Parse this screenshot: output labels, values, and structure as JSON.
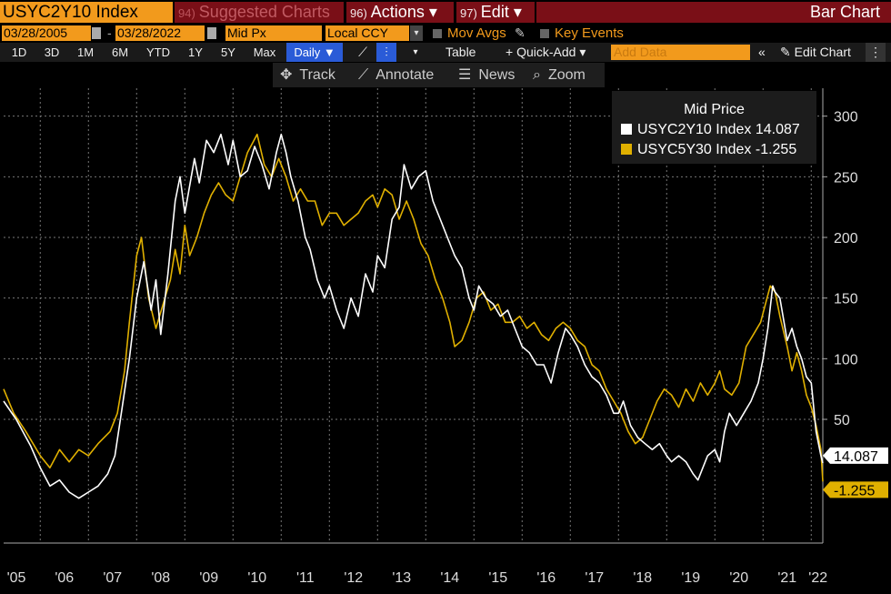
{
  "toolbar": {
    "ticker": "USYC2Y10 Index",
    "suggested": {
      "num": "94)",
      "label": "Suggested Charts"
    },
    "actions": {
      "num": "96)",
      "label": "Actions ▾"
    },
    "edit": {
      "num": "97)",
      "label": "Edit ▾"
    },
    "title": "Bar Chart"
  },
  "params": {
    "start_date": "03/28/2005",
    "end_date": "03/28/2022",
    "price_field": "Mid Px",
    "currency": "Local CCY",
    "mov_avgs": "Mov Avgs",
    "key_events": "Key Events",
    "add_data_placeholder": "Add Data"
  },
  "ranges": [
    "1D",
    "3D",
    "1M",
    "6M",
    "YTD",
    "1Y",
    "5Y",
    "Max"
  ],
  "frequency": "Daily ▼",
  "chart_tools": {
    "table": "Table",
    "quick_add": "+ Quick-Add ▾",
    "edit_chart": "✎ Edit Chart",
    "collapse": "«"
  },
  "actions_bar": {
    "track": "Track",
    "annotate": "Annotate",
    "news": "News",
    "zoom": "Zoom"
  },
  "colors": {
    "white_series": "#ffffff",
    "gold_series": "#e0b000",
    "orange": "#f29a1c"
  },
  "chart_data": {
    "type": "line",
    "title": "Mid Price",
    "y_ticks": [
      50,
      100,
      150,
      200,
      250,
      300
    ],
    "ylim": [
      -52,
      323
    ],
    "x_tick_labels": [
      "'05",
      "'06",
      "'07",
      "'08",
      "'09",
      "'10",
      "'11",
      "'12",
      "'13",
      "'14",
      "'15",
      "'16",
      "'17",
      "'18",
      "'19",
      "'20",
      "'21",
      "'22"
    ],
    "xlim": [
      2005.24,
      2022.24
    ],
    "series": [
      {
        "name": "USYC2Y10 Index",
        "last_value": "14.087",
        "points": [
          [
            2005.24,
            65
          ],
          [
            2005.5,
            50
          ],
          [
            2005.8,
            28
          ],
          [
            2006.0,
            10
          ],
          [
            2006.2,
            -5
          ],
          [
            2006.4,
            0
          ],
          [
            2006.6,
            -10
          ],
          [
            2006.8,
            -15
          ],
          [
            2007.0,
            -10
          ],
          [
            2007.2,
            -5
          ],
          [
            2007.4,
            5
          ],
          [
            2007.55,
            20
          ],
          [
            2007.7,
            60
          ],
          [
            2007.85,
            100
          ],
          [
            2008.0,
            150
          ],
          [
            2008.15,
            180
          ],
          [
            2008.3,
            140
          ],
          [
            2008.4,
            165
          ],
          [
            2008.5,
            120
          ],
          [
            2008.65,
            170
          ],
          [
            2008.8,
            230
          ],
          [
            2008.9,
            250
          ],
          [
            2009.0,
            220
          ],
          [
            2009.2,
            265
          ],
          [
            2009.3,
            245
          ],
          [
            2009.45,
            280
          ],
          [
            2009.6,
            270
          ],
          [
            2009.75,
            285
          ],
          [
            2009.9,
            260
          ],
          [
            2010.0,
            280
          ],
          [
            2010.15,
            250
          ],
          [
            2010.3,
            255
          ],
          [
            2010.45,
            275
          ],
          [
            2010.6,
            260
          ],
          [
            2010.75,
            240
          ],
          [
            2010.9,
            270
          ],
          [
            2011.0,
            285
          ],
          [
            2011.1,
            270
          ],
          [
            2011.2,
            250
          ],
          [
            2011.35,
            230
          ],
          [
            2011.5,
            200
          ],
          [
            2011.6,
            190
          ],
          [
            2011.75,
            165
          ],
          [
            2011.9,
            150
          ],
          [
            2012.0,
            160
          ],
          [
            2012.15,
            140
          ],
          [
            2012.3,
            125
          ],
          [
            2012.45,
            150
          ],
          [
            2012.6,
            135
          ],
          [
            2012.75,
            170
          ],
          [
            2012.9,
            155
          ],
          [
            2013.0,
            185
          ],
          [
            2013.15,
            175
          ],
          [
            2013.3,
            215
          ],
          [
            2013.45,
            225
          ],
          [
            2013.55,
            260
          ],
          [
            2013.7,
            240
          ],
          [
            2013.85,
            250
          ],
          [
            2014.0,
            255
          ],
          [
            2014.15,
            230
          ],
          [
            2014.3,
            215
          ],
          [
            2014.45,
            200
          ],
          [
            2014.6,
            185
          ],
          [
            2014.75,
            175
          ],
          [
            2014.9,
            150
          ],
          [
            2015.0,
            140
          ],
          [
            2015.1,
            160
          ],
          [
            2015.25,
            150
          ],
          [
            2015.4,
            145
          ],
          [
            2015.55,
            135
          ],
          [
            2015.7,
            140
          ],
          [
            2015.85,
            125
          ],
          [
            2016.0,
            110
          ],
          [
            2016.15,
            105
          ],
          [
            2016.3,
            95
          ],
          [
            2016.45,
            95
          ],
          [
            2016.6,
            80
          ],
          [
            2016.75,
            105
          ],
          [
            2016.9,
            125
          ],
          [
            2017.0,
            120
          ],
          [
            2017.15,
            110
          ],
          [
            2017.3,
            95
          ],
          [
            2017.45,
            85
          ],
          [
            2017.6,
            80
          ],
          [
            2017.75,
            70
          ],
          [
            2017.9,
            55
          ],
          [
            2018.0,
            55
          ],
          [
            2018.1,
            65
          ],
          [
            2018.25,
            45
          ],
          [
            2018.4,
            35
          ],
          [
            2018.55,
            30
          ],
          [
            2018.7,
            25
          ],
          [
            2018.85,
            30
          ],
          [
            2019.0,
            20
          ],
          [
            2019.1,
            15
          ],
          [
            2019.25,
            20
          ],
          [
            2019.4,
            15
          ],
          [
            2019.55,
            5
          ],
          [
            2019.65,
            0
          ],
          [
            2019.75,
            10
          ],
          [
            2019.85,
            20
          ],
          [
            2020.0,
            25
          ],
          [
            2020.1,
            15
          ],
          [
            2020.2,
            40
          ],
          [
            2020.3,
            55
          ],
          [
            2020.45,
            45
          ],
          [
            2020.6,
            55
          ],
          [
            2020.75,
            65
          ],
          [
            2020.9,
            80
          ],
          [
            2021.0,
            100
          ],
          [
            2021.1,
            125
          ],
          [
            2021.2,
            160
          ],
          [
            2021.25,
            155
          ],
          [
            2021.35,
            150
          ],
          [
            2021.5,
            115
          ],
          [
            2021.6,
            125
          ],
          [
            2021.7,
            110
          ],
          [
            2021.8,
            100
          ],
          [
            2021.9,
            85
          ],
          [
            2022.0,
            80
          ],
          [
            2022.1,
            40
          ],
          [
            2022.2,
            20
          ],
          [
            2022.24,
            14.087
          ]
        ]
      },
      {
        "name": "USYC5Y30 Index",
        "last_value": "-1.255",
        "points": [
          [
            2005.24,
            75
          ],
          [
            2005.45,
            55
          ],
          [
            2005.7,
            40
          ],
          [
            2006.0,
            20
          ],
          [
            2006.2,
            10
          ],
          [
            2006.4,
            25
          ],
          [
            2006.6,
            15
          ],
          [
            2006.8,
            25
          ],
          [
            2007.0,
            20
          ],
          [
            2007.2,
            30
          ],
          [
            2007.45,
            40
          ],
          [
            2007.6,
            55
          ],
          [
            2007.75,
            90
          ],
          [
            2007.85,
            130
          ],
          [
            2008.0,
            185
          ],
          [
            2008.1,
            200
          ],
          [
            2008.25,
            150
          ],
          [
            2008.4,
            125
          ],
          [
            2008.55,
            145
          ],
          [
            2008.7,
            165
          ],
          [
            2008.8,
            190
          ],
          [
            2008.9,
            170
          ],
          [
            2009.0,
            210
          ],
          [
            2009.1,
            185
          ],
          [
            2009.25,
            200
          ],
          [
            2009.4,
            220
          ],
          [
            2009.55,
            235
          ],
          [
            2009.7,
            245
          ],
          [
            2009.85,
            235
          ],
          [
            2010.0,
            230
          ],
          [
            2010.15,
            250
          ],
          [
            2010.3,
            270
          ],
          [
            2010.5,
            285
          ],
          [
            2010.65,
            260
          ],
          [
            2010.8,
            250
          ],
          [
            2010.95,
            265
          ],
          [
            2011.1,
            250
          ],
          [
            2011.25,
            230
          ],
          [
            2011.4,
            240
          ],
          [
            2011.55,
            230
          ],
          [
            2011.7,
            230
          ],
          [
            2011.85,
            210
          ],
          [
            2012.0,
            220
          ],
          [
            2012.15,
            220
          ],
          [
            2012.3,
            210
          ],
          [
            2012.45,
            215
          ],
          [
            2012.6,
            220
          ],
          [
            2012.75,
            230
          ],
          [
            2012.9,
            235
          ],
          [
            2013.0,
            225
          ],
          [
            2013.15,
            240
          ],
          [
            2013.3,
            235
          ],
          [
            2013.45,
            215
          ],
          [
            2013.6,
            230
          ],
          [
            2013.75,
            215
          ],
          [
            2013.9,
            195
          ],
          [
            2014.05,
            185
          ],
          [
            2014.2,
            165
          ],
          [
            2014.35,
            150
          ],
          [
            2014.5,
            130
          ],
          [
            2014.6,
            110
          ],
          [
            2014.75,
            115
          ],
          [
            2014.9,
            130
          ],
          [
            2015.05,
            150
          ],
          [
            2015.2,
            155
          ],
          [
            2015.35,
            140
          ],
          [
            2015.5,
            145
          ],
          [
            2015.65,
            130
          ],
          [
            2015.8,
            130
          ],
          [
            2015.95,
            135
          ],
          [
            2016.1,
            125
          ],
          [
            2016.25,
            130
          ],
          [
            2016.4,
            120
          ],
          [
            2016.55,
            115
          ],
          [
            2016.7,
            125
          ],
          [
            2016.85,
            130
          ],
          [
            2017.0,
            125
          ],
          [
            2017.15,
            115
          ],
          [
            2017.3,
            110
          ],
          [
            2017.45,
            95
          ],
          [
            2017.6,
            90
          ],
          [
            2017.75,
            75
          ],
          [
            2017.9,
            65
          ],
          [
            2018.05,
            55
          ],
          [
            2018.2,
            40
          ],
          [
            2018.35,
            30
          ],
          [
            2018.5,
            35
          ],
          [
            2018.65,
            50
          ],
          [
            2018.8,
            65
          ],
          [
            2018.95,
            75
          ],
          [
            2019.1,
            70
          ],
          [
            2019.25,
            60
          ],
          [
            2019.4,
            75
          ],
          [
            2019.55,
            65
          ],
          [
            2019.7,
            80
          ],
          [
            2019.85,
            70
          ],
          [
            2020.0,
            80
          ],
          [
            2020.1,
            90
          ],
          [
            2020.2,
            75
          ],
          [
            2020.35,
            70
          ],
          [
            2020.5,
            80
          ],
          [
            2020.65,
            110
          ],
          [
            2020.8,
            120
          ],
          [
            2020.95,
            130
          ],
          [
            2021.05,
            145
          ],
          [
            2021.15,
            160
          ],
          [
            2021.25,
            155
          ],
          [
            2021.35,
            135
          ],
          [
            2021.5,
            110
          ],
          [
            2021.6,
            90
          ],
          [
            2021.7,
            105
          ],
          [
            2021.8,
            90
          ],
          [
            2021.9,
            70
          ],
          [
            2022.0,
            60
          ],
          [
            2022.1,
            45
          ],
          [
            2022.2,
            25
          ],
          [
            2022.24,
            -1.255
          ]
        ]
      }
    ]
  }
}
